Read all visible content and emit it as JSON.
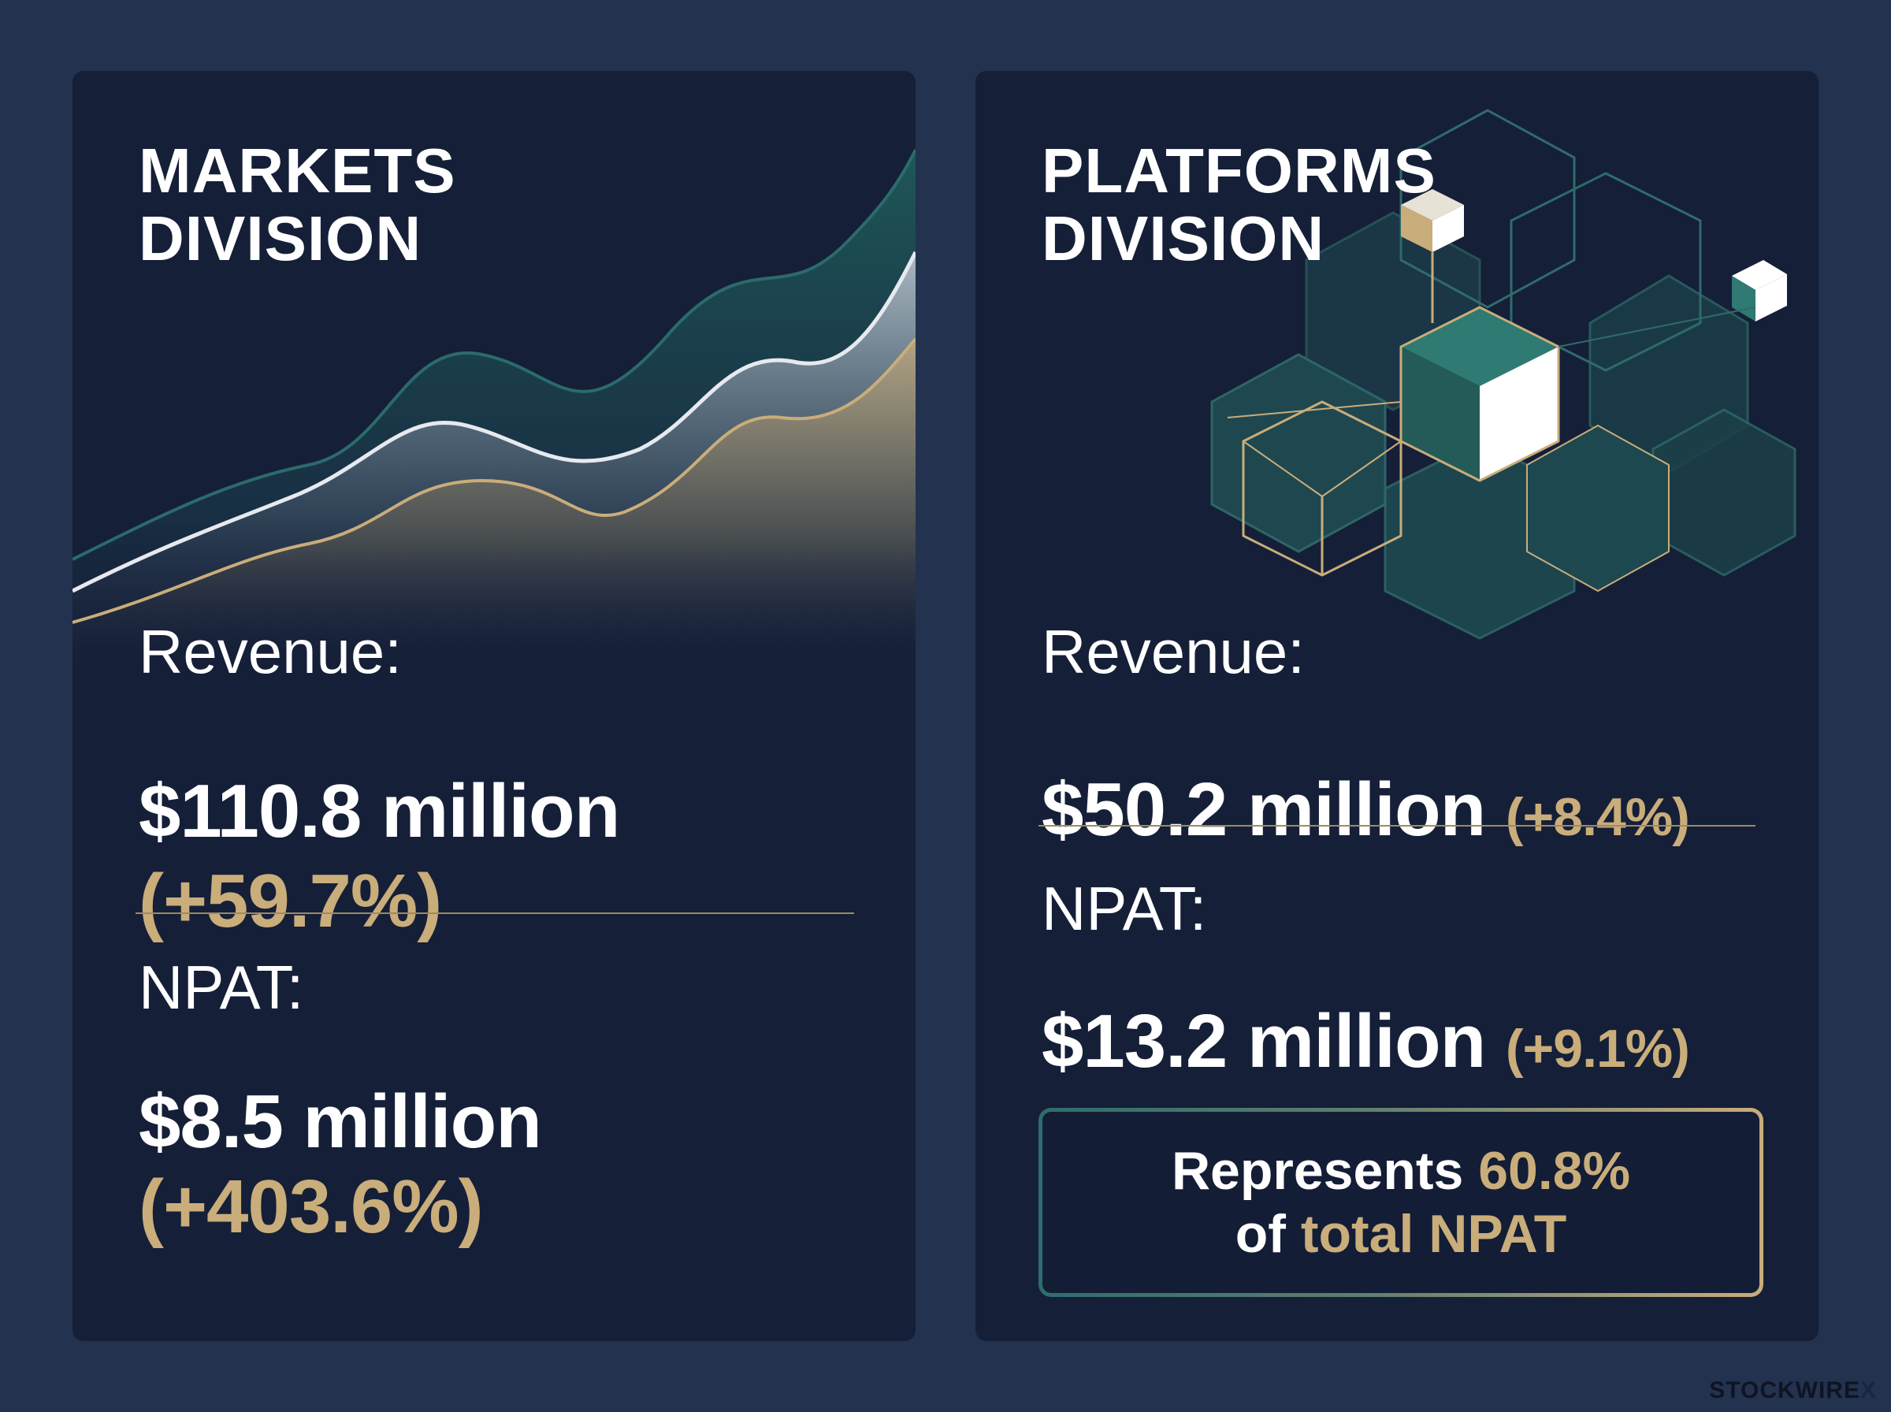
{
  "markets": {
    "title_line1": "MARKETS",
    "title_line2": "DIVISION",
    "revenue_label": "Revenue:",
    "revenue_value": "$110.8 million",
    "revenue_change": "(+59.7%)",
    "npat_label": "NPAT:",
    "npat_value": "$8.5 million",
    "npat_change": "(+403.6%)"
  },
  "platforms": {
    "title_line1": "PLATFORMS",
    "title_line2": "DIVISION",
    "revenue_label": "Revenue:",
    "revenue_value": "$50.2 million",
    "revenue_change": "(+8.4%)",
    "npat_label": "NPAT:",
    "npat_value": "$13.2 million",
    "npat_change": "(+9.1%)",
    "callout": {
      "prefix": "Represents",
      "percent": "60.8%",
      "of": "of",
      "total_npat": "total NPAT"
    }
  },
  "brand": {
    "name": "STOCKWIRE",
    "mark": "X"
  },
  "colors": {
    "background": "#22324f",
    "panel": "#151f38",
    "accent_gold": "#c9ad7a",
    "accent_teal": "#245c5c",
    "text": "#ffffff"
  }
}
